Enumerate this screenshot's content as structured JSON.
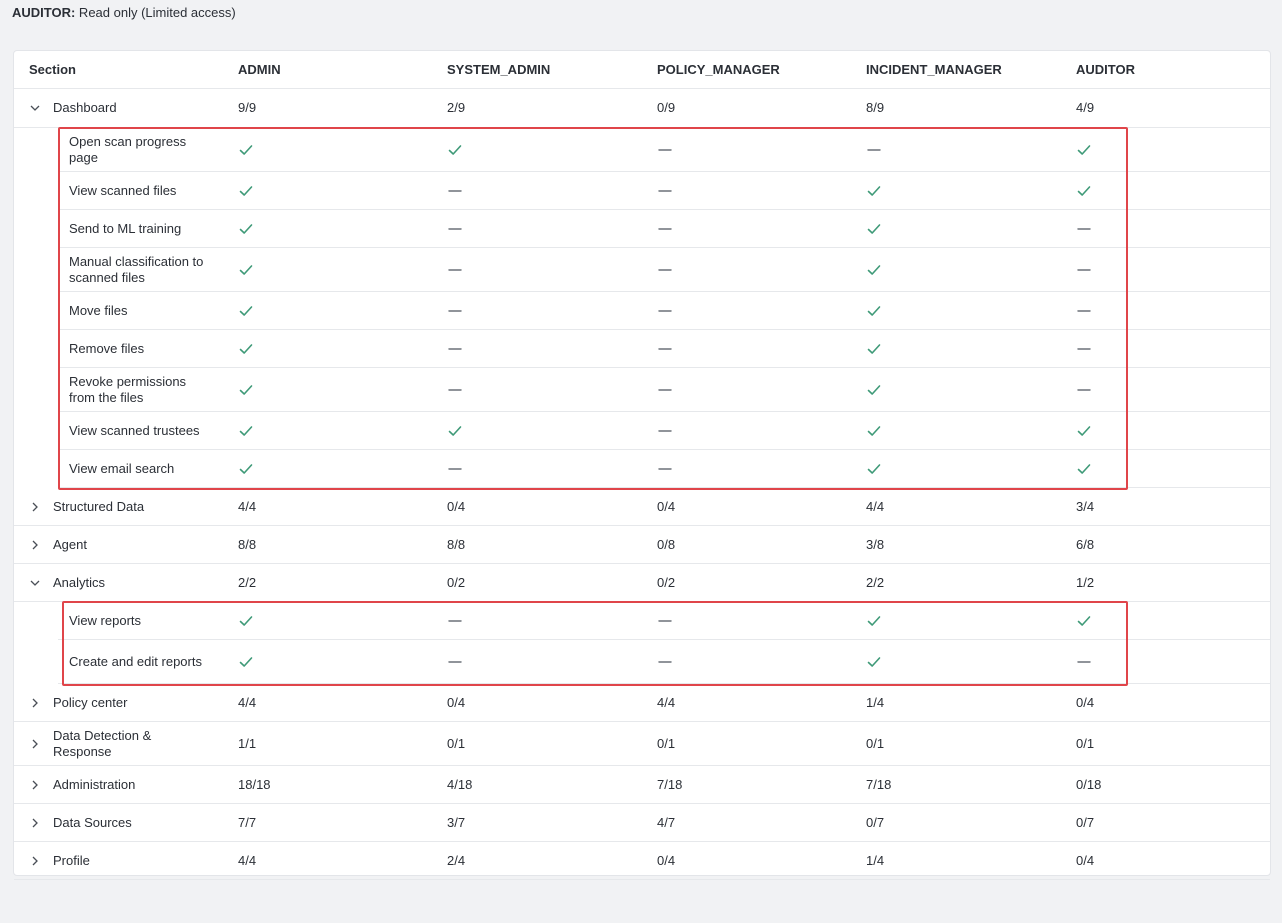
{
  "header_note": {
    "role": "AUDITOR:",
    "text": " Read only (Limited access)"
  },
  "table": {
    "columns": [
      "Section",
      "ADMIN",
      "SYSTEM_ADMIN",
      "POLICY_MANAGER",
      "INCIDENT_MANAGER",
      "AUDITOR"
    ],
    "rows": [
      {
        "type": "section",
        "label": "Dashboard",
        "expanded": true,
        "values": [
          "9/9",
          "2/9",
          "0/9",
          "8/9",
          "4/9"
        ]
      },
      {
        "type": "perm",
        "label": "Open scan progress page",
        "values": [
          "check",
          "check",
          "dash",
          "dash",
          "check"
        ]
      },
      {
        "type": "perm",
        "label": "View scanned files",
        "values": [
          "check",
          "dash",
          "dash",
          "check",
          "check"
        ]
      },
      {
        "type": "perm",
        "label": "Send to ML training",
        "values": [
          "check",
          "dash",
          "dash",
          "check",
          "dash"
        ]
      },
      {
        "type": "perm",
        "label": "Manual classification to scanned files",
        "values": [
          "check",
          "dash",
          "dash",
          "check",
          "dash"
        ]
      },
      {
        "type": "perm",
        "label": "Move files",
        "values": [
          "check",
          "dash",
          "dash",
          "check",
          "dash"
        ]
      },
      {
        "type": "perm",
        "label": "Remove files",
        "values": [
          "check",
          "dash",
          "dash",
          "check",
          "dash"
        ]
      },
      {
        "type": "perm",
        "label": "Revoke permissions from the files",
        "values": [
          "check",
          "dash",
          "dash",
          "check",
          "dash"
        ]
      },
      {
        "type": "perm",
        "label": "View scanned trustees",
        "values": [
          "check",
          "check",
          "dash",
          "check",
          "check"
        ]
      },
      {
        "type": "perm",
        "label": "View email search",
        "values": [
          "check",
          "dash",
          "dash",
          "check",
          "check"
        ]
      },
      {
        "type": "section",
        "label": "Structured Data",
        "expanded": false,
        "values": [
          "4/4",
          "0/4",
          "0/4",
          "4/4",
          "3/4"
        ]
      },
      {
        "type": "section",
        "label": "Agent",
        "expanded": false,
        "values": [
          "8/8",
          "8/8",
          "0/8",
          "3/8",
          "6/8"
        ]
      },
      {
        "type": "section",
        "label": "Analytics",
        "expanded": true,
        "values": [
          "2/2",
          "0/2",
          "0/2",
          "2/2",
          "1/2"
        ]
      },
      {
        "type": "perm",
        "label": "View reports",
        "values": [
          "check",
          "dash",
          "dash",
          "check",
          "check"
        ]
      },
      {
        "type": "perm",
        "label": "Create and edit reports",
        "values": [
          "check",
          "dash",
          "dash",
          "check",
          "dash"
        ]
      },
      {
        "type": "section",
        "label": "Policy center",
        "expanded": false,
        "values": [
          "4/4",
          "0/4",
          "4/4",
          "1/4",
          "0/4"
        ]
      },
      {
        "type": "section",
        "label": "Data Detection & Response",
        "expanded": false,
        "values": [
          "1/1",
          "0/1",
          "0/1",
          "0/1",
          "0/1"
        ]
      },
      {
        "type": "section",
        "label": "Administration",
        "expanded": false,
        "values": [
          "18/18",
          "4/18",
          "7/18",
          "7/18",
          "0/18"
        ]
      },
      {
        "type": "section",
        "label": "Data Sources",
        "expanded": false,
        "values": [
          "7/7",
          "3/7",
          "4/7",
          "0/7",
          "0/7"
        ]
      },
      {
        "type": "section",
        "label": "Profile",
        "expanded": false,
        "values": [
          "4/4",
          "2/4",
          "0/4",
          "1/4",
          "0/4"
        ]
      }
    ]
  },
  "colors": {
    "check": "#3f9a78",
    "dash": "#6b7079",
    "highlight": "#e0454a"
  },
  "icons": {
    "check": "check-icon",
    "dash": "dash-icon",
    "expanded": "chevron-down-icon",
    "collapsed": "chevron-right-icon"
  }
}
